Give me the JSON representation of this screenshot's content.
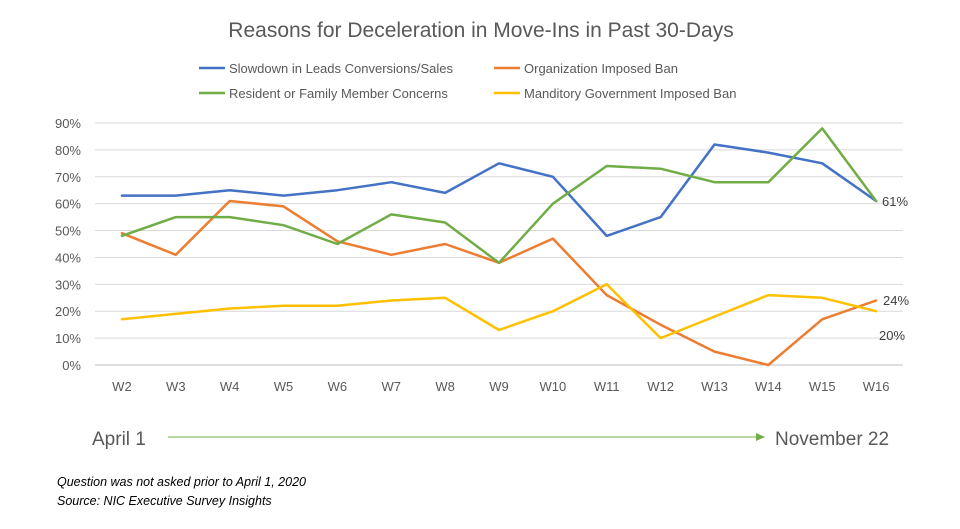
{
  "chart_data": {
    "type": "line",
    "title": "Reasons for Deceleration in Move-Ins in Past 30-Days",
    "xlabel": "",
    "ylabel": "",
    "categories": [
      "W2",
      "W3",
      "W4",
      "W5",
      "W6",
      "W7",
      "W8",
      "W9",
      "W10",
      "W11",
      "W12",
      "W13",
      "W14",
      "W15",
      "W16"
    ],
    "y_ticks": [
      "0%",
      "10%",
      "20%",
      "30%",
      "40%",
      "50%",
      "60%",
      "70%",
      "80%",
      "90%"
    ],
    "ylim": [
      0,
      90
    ],
    "grid": true,
    "legend_position": "top",
    "series": [
      {
        "name": "Slowdown in Leads Conversions/Sales",
        "color": "#4472C4",
        "values": [
          63,
          63,
          65,
          63,
          65,
          68,
          64,
          75,
          70,
          48,
          55,
          82,
          79,
          75,
          61
        ]
      },
      {
        "name": "Organization Imposed Ban",
        "color": "#ED7D31",
        "values": [
          49,
          41,
          61,
          59,
          46,
          41,
          45,
          38,
          47,
          26,
          15,
          5,
          0,
          17,
          24
        ]
      },
      {
        "name": "Resident or Family Member Concerns",
        "color": "#70AD47",
        "values": [
          48,
          55,
          55,
          52,
          45,
          56,
          53,
          38,
          60,
          74,
          73,
          68,
          68,
          88,
          61
        ]
      },
      {
        "name": "Manditory Government Imposed Ban",
        "color": "#FFC000",
        "values": [
          17,
          19,
          21,
          22,
          22,
          24,
          25,
          13,
          20,
          30,
          10,
          18,
          26,
          25,
          20
        ]
      }
    ],
    "end_labels": [
      "61%",
      "24%",
      "20%"
    ],
    "timeline": {
      "start": "April 1",
      "end": "November 22",
      "arrow_color": "#70AD47"
    }
  },
  "footnotes": {
    "note": "Question was not asked prior to April 1, 2020",
    "source": "Source: NIC Executive Survey Insights"
  }
}
